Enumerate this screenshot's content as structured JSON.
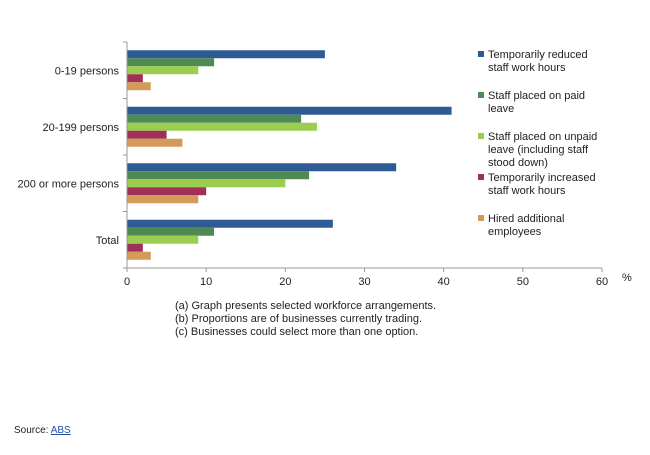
{
  "chart_data": {
    "type": "bar",
    "orientation": "horizontal",
    "categories": [
      "0-19 persons",
      "20-199 persons",
      "200 or more persons",
      "Total"
    ],
    "series": [
      {
        "name": "Temporarily reduced staff work hours",
        "color": "#2e5b94",
        "values": [
          25,
          41,
          34,
          26
        ]
      },
      {
        "name": "Staff placed on paid leave",
        "color": "#4e8a52",
        "values": [
          11,
          22,
          23,
          11
        ]
      },
      {
        "name": "Staff placed on unpaid leave (including staff stood down)",
        "color": "#9acd50",
        "values": [
          9,
          24,
          20,
          9
        ]
      },
      {
        "name": "Temporarily increased staff work hours",
        "color": "#a0305a",
        "values": [
          2,
          5,
          10,
          2
        ]
      },
      {
        "name": "Hired additional employees",
        "color": "#d49a5a",
        "values": [
          3,
          7,
          9,
          3
        ]
      }
    ],
    "xlabel": "%",
    "xlim": [
      0,
      60
    ],
    "xticks": [
      0,
      10,
      20,
      30,
      40,
      50,
      60
    ],
    "grid": false,
    "legend": "right"
  },
  "notes": [
    "(a) Graph presents selected workforce arrangements.",
    "(b) Proportions are of businesses currently trading.",
    "(c) Businesses could select more than one option."
  ],
  "source": {
    "label": "Source:",
    "link_text": "ABS"
  }
}
